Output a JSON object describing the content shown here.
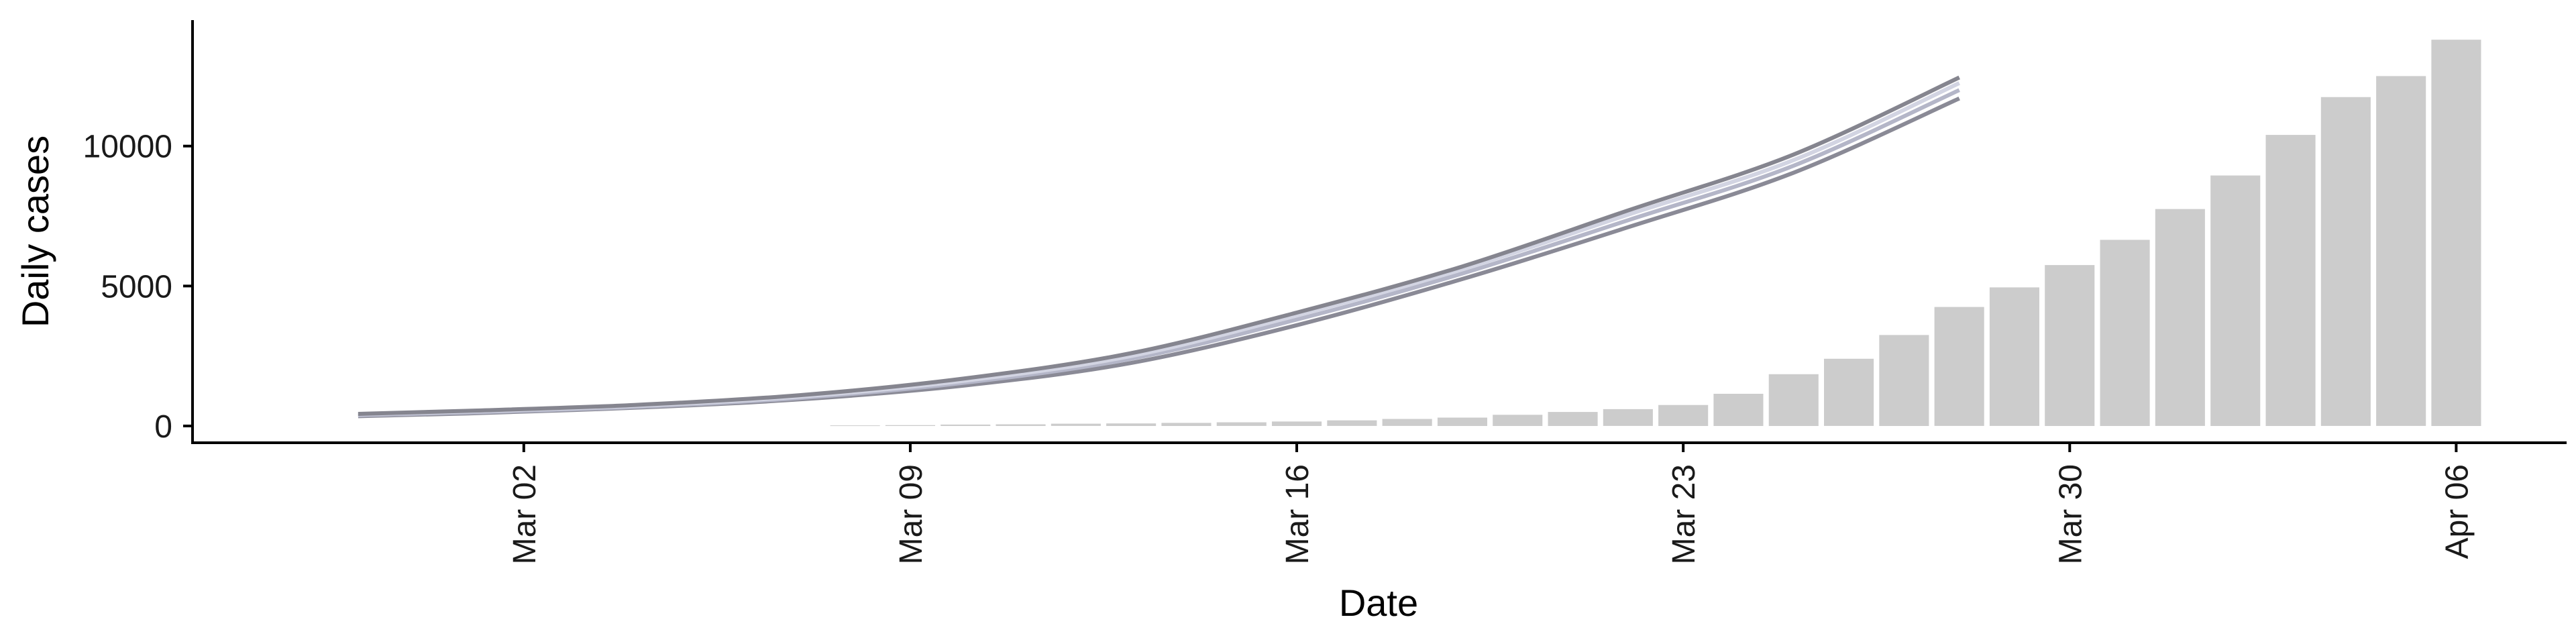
{
  "chart_data": {
    "type": "bar",
    "title": "",
    "xlabel": "Date",
    "ylabel": "Daily cases",
    "xlim": [
      "2020-02-25",
      "2020-04-08"
    ],
    "ylim": [
      -600,
      14500
    ],
    "x_ticks": [
      {
        "date": "2020-03-02",
        "label": "Mar 02"
      },
      {
        "date": "2020-03-09",
        "label": "Mar 09"
      },
      {
        "date": "2020-03-16",
        "label": "Mar 16"
      },
      {
        "date": "2020-03-23",
        "label": "Mar 23"
      },
      {
        "date": "2020-03-30",
        "label": "Mar 30"
      },
      {
        "date": "2020-04-06",
        "label": "Apr 06"
      }
    ],
    "y_ticks": [
      0,
      5000,
      10000
    ],
    "grid": false,
    "legend": "none",
    "bars": {
      "name": "",
      "color": "#cccccc",
      "dates": [
        "2020-03-08",
        "2020-03-09",
        "2020-03-10",
        "2020-03-11",
        "2020-03-12",
        "2020-03-13",
        "2020-03-14",
        "2020-03-15",
        "2020-03-16",
        "2020-03-17",
        "2020-03-18",
        "2020-03-19",
        "2020-03-20",
        "2020-03-21",
        "2020-03-22",
        "2020-03-23",
        "2020-03-24",
        "2020-03-25",
        "2020-03-26",
        "2020-03-27",
        "2020-03-28",
        "2020-03-29",
        "2020-03-30",
        "2020-03-31",
        "2020-04-01",
        "2020-04-02",
        "2020-04-03",
        "2020-04-04",
        "2020-04-05",
        "2020-04-06"
      ],
      "values": [
        20,
        30,
        50,
        60,
        80,
        90,
        110,
        130,
        160,
        200,
        250,
        300,
        400,
        500,
        600,
        750,
        1150,
        1850,
        2400,
        3250,
        4250,
        4950,
        5750,
        6650,
        7750,
        8950,
        10400,
        11750,
        12500,
        13800
      ]
    },
    "series": [
      {
        "name": "",
        "type": "line",
        "color": "#8a8a96",
        "dates": [
          "2020-02-28",
          "2020-03-01",
          "2020-03-04",
          "2020-03-07",
          "2020-03-10",
          "2020-03-13",
          "2020-03-16",
          "2020-03-19",
          "2020-03-22",
          "2020-03-25",
          "2020-03-28"
        ],
        "values": [
          350,
          450,
          650,
          950,
          1450,
          2250,
          3600,
          5250,
          7100,
          9050,
          11700
        ]
      },
      {
        "name": "",
        "type": "line",
        "color": "#b4b6c8",
        "dates": [
          "2020-02-28",
          "2020-03-01",
          "2020-03-04",
          "2020-03-07",
          "2020-03-10",
          "2020-03-13",
          "2020-03-16",
          "2020-03-19",
          "2020-03-22",
          "2020-03-25",
          "2020-03-28"
        ],
        "values": [
          380,
          480,
          680,
          1000,
          1550,
          2400,
          3800,
          5450,
          7350,
          9300,
          12000
        ]
      },
      {
        "name": "",
        "type": "line",
        "color": "#d2d4e2",
        "dates": [
          "2020-02-28",
          "2020-03-01",
          "2020-03-04",
          "2020-03-07",
          "2020-03-10",
          "2020-03-13",
          "2020-03-16",
          "2020-03-19",
          "2020-03-22",
          "2020-03-25",
          "2020-03-28"
        ],
        "values": [
          420,
          520,
          720,
          1050,
          1620,
          2500,
          3950,
          5600,
          7550,
          9500,
          12250
        ]
      },
      {
        "name": "",
        "type": "line",
        "color": "#85858f",
        "dates": [
          "2020-02-28",
          "2020-03-01",
          "2020-03-04",
          "2020-03-07",
          "2020-03-10",
          "2020-03-13",
          "2020-03-16",
          "2020-03-19",
          "2020-03-22",
          "2020-03-25",
          "2020-03-28"
        ],
        "values": [
          430,
          540,
          750,
          1100,
          1700,
          2600,
          4050,
          5700,
          7700,
          9700,
          12450
        ]
      }
    ]
  }
}
